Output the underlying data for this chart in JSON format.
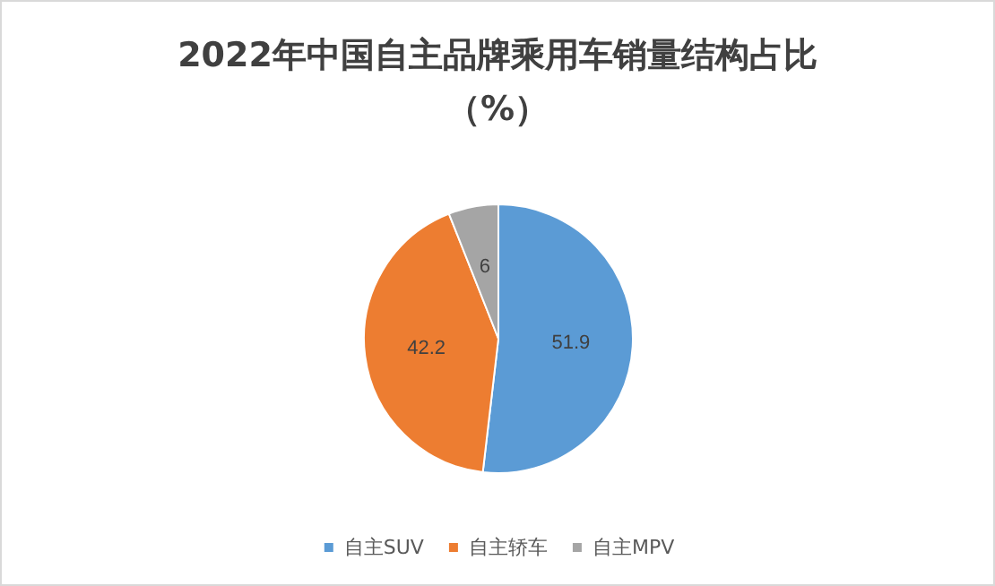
{
  "chart_data": {
    "type": "pie",
    "title": "2022年中国自主品牌乘用车销量结构占比（%）",
    "categories": [
      "自主SUV",
      "自主轿车",
      "自主MPV"
    ],
    "values": [
      51.9,
      42.2,
      6
    ],
    "colors": [
      "#5b9bd5",
      "#ed7d31",
      "#a5a5a5"
    ],
    "data_labels": true,
    "legend": "bottom"
  }
}
